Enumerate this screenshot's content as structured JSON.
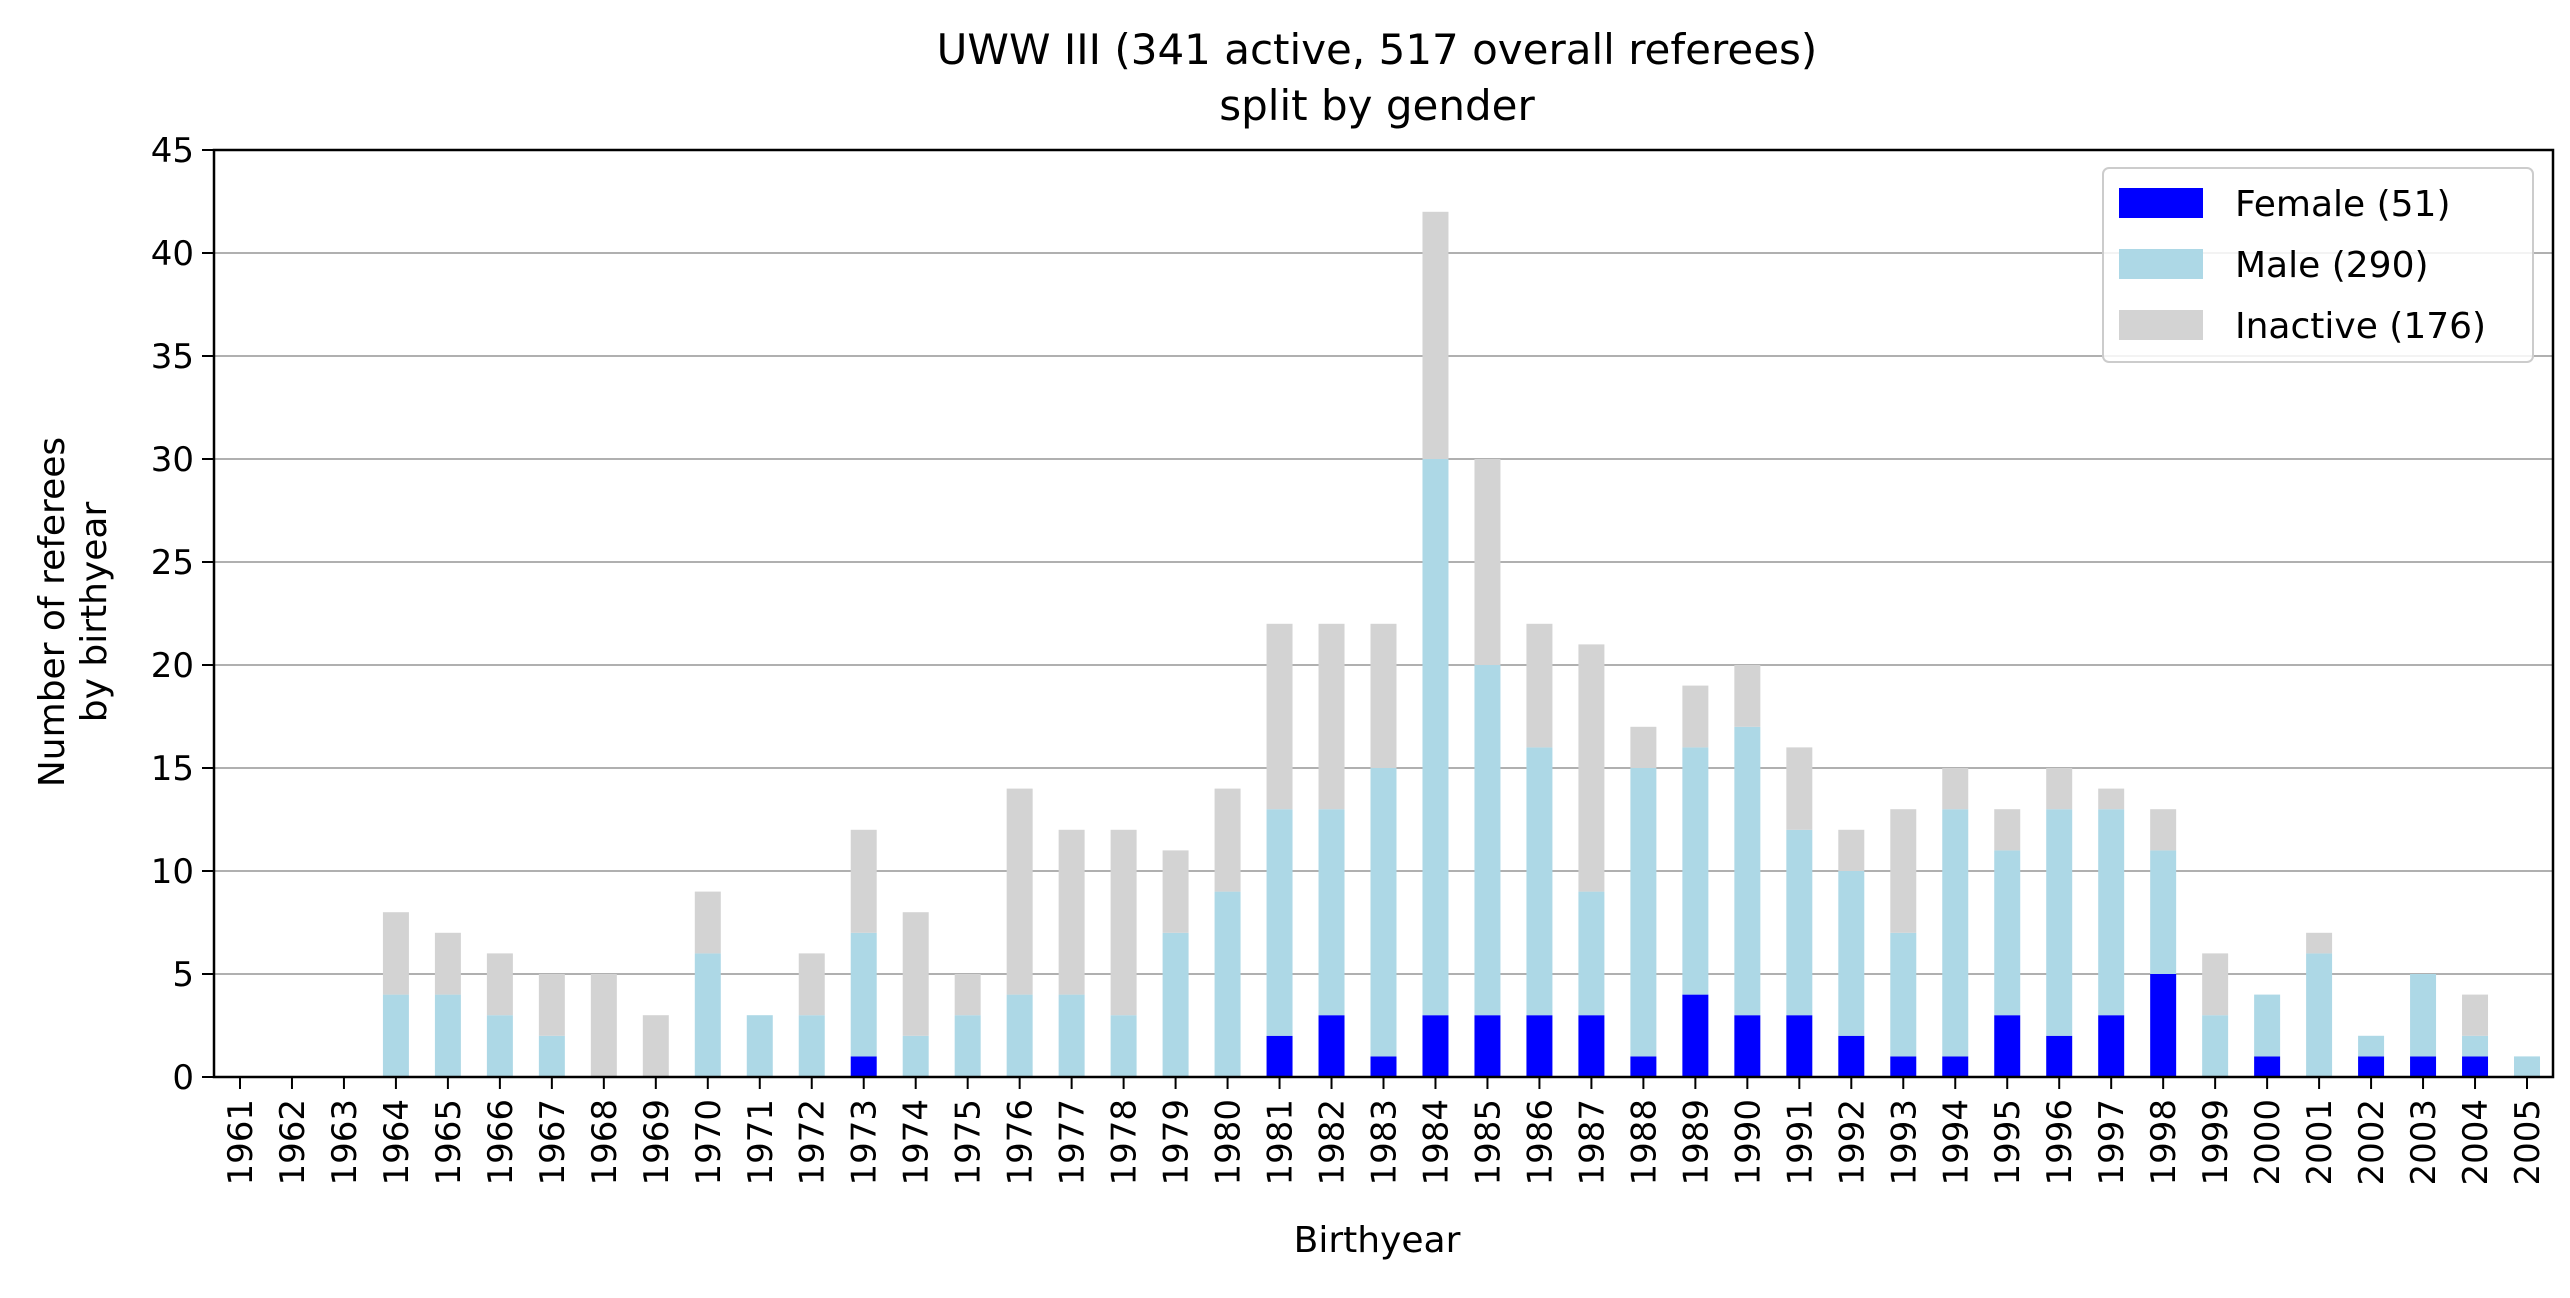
{
  "chart_data": {
    "type": "bar",
    "stacked": true,
    "title": "UWW III (341 active, 517 overall referees)",
    "subtitle": "split by gender",
    "xlabel": "Birthyear",
    "ylabel_line1": "Number of referees",
    "ylabel_line2": "by birthyear",
    "ylim": [
      0,
      45
    ],
    "yticks": [
      "0",
      "5",
      "10",
      "15",
      "20",
      "25",
      "30",
      "35",
      "40",
      "45"
    ],
    "grid": "horizontal",
    "legend_position": "top-right",
    "categories": [
      "1961",
      "1962",
      "1963",
      "1964",
      "1965",
      "1966",
      "1967",
      "1968",
      "1969",
      "1970",
      "1971",
      "1972",
      "1973",
      "1974",
      "1975",
      "1976",
      "1977",
      "1978",
      "1979",
      "1980",
      "1981",
      "1982",
      "1983",
      "1984",
      "1985",
      "1986",
      "1987",
      "1988",
      "1989",
      "1990",
      "1991",
      "1992",
      "1993",
      "1994",
      "1995",
      "1996",
      "1997",
      "1998",
      "1999",
      "2000",
      "2001",
      "2002",
      "2003",
      "2004",
      "2005"
    ],
    "series": [
      {
        "name": "Female (51)",
        "color": "#0000ff",
        "values": [
          0,
          0,
          0,
          0,
          0,
          0,
          0,
          0,
          0,
          0,
          0,
          0,
          1,
          0,
          0,
          0,
          0,
          0,
          0,
          0,
          2,
          3,
          1,
          3,
          3,
          3,
          3,
          1,
          4,
          3,
          3,
          2,
          1,
          1,
          3,
          2,
          3,
          5,
          0,
          1,
          0,
          1,
          1,
          1,
          0
        ]
      },
      {
        "name": "Male (290)",
        "color": "#add8e6",
        "values": [
          0,
          0,
          0,
          4,
          4,
          3,
          2,
          0,
          0,
          6,
          3,
          3,
          6,
          2,
          3,
          4,
          4,
          3,
          7,
          9,
          11,
          10,
          14,
          27,
          17,
          13,
          6,
          14,
          12,
          14,
          9,
          8,
          6,
          12,
          8,
          11,
          10,
          6,
          3,
          3,
          6,
          1,
          4,
          1,
          1
        ]
      },
      {
        "name": "Inactive (176)",
        "color": "#d3d3d3",
        "values": [
          0,
          0,
          0,
          4,
          3,
          3,
          3,
          5,
          3,
          3,
          0,
          3,
          5,
          6,
          2,
          10,
          8,
          9,
          4,
          5,
          9,
          9,
          7,
          12,
          10,
          6,
          12,
          2,
          3,
          3,
          4,
          2,
          6,
          2,
          2,
          2,
          1,
          2,
          3,
          0,
          1,
          0,
          0,
          2,
          0
        ]
      }
    ]
  }
}
